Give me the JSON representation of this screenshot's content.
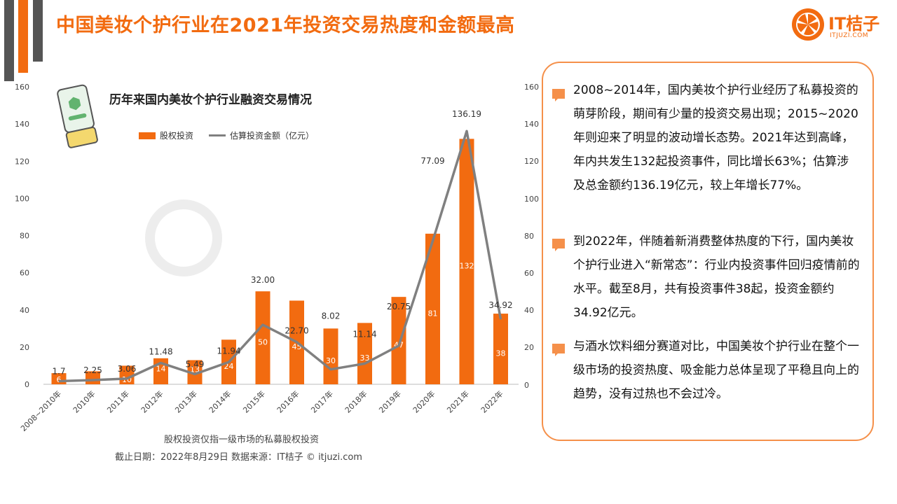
{
  "title": "中国美妆个护行业在2021年投资交易热度和金额最高",
  "logo": {
    "text": "IT桔子",
    "sub": "ITJUZI.COM"
  },
  "colors": {
    "accent": "#f26b10",
    "bar": "#f26b10",
    "line": "#808080",
    "deco_gray": "#555555"
  },
  "chart_data": {
    "type": "bar+line",
    "title": "历年来国内美妆个护行业融资交易情况",
    "categories": [
      "2008~2010年",
      "2010年",
      "2011年",
      "2012年",
      "2013年",
      "2014年",
      "2015年",
      "2016年",
      "2017年",
      "2018年",
      "2019年",
      "2020年",
      "2021年",
      "2022年"
    ],
    "series": [
      {
        "name": "股权投资",
        "type": "bar",
        "values": [
          6,
          7,
          10,
          14,
          13,
          24,
          50,
          45,
          30,
          33,
          47,
          81,
          132,
          38
        ],
        "labels": [
          "6",
          "",
          "10",
          "14",
          "13",
          "24",
          "50",
          "45",
          "30",
          "33",
          "47",
          "81",
          "132",
          "38"
        ]
      },
      {
        "name": "估算投资金额（亿元）",
        "type": "line",
        "values": [
          1.7,
          2.25,
          3.06,
          11.48,
          5.49,
          11.94,
          32.0,
          22.7,
          8.02,
          11.14,
          20.75,
          77.09,
          136.19,
          34.92
        ],
        "labels": [
          "1.7",
          "2.25",
          "3.06",
          "11.48",
          "5.49",
          "11.94",
          "32.00",
          "22.70",
          "8.02",
          "11.14",
          "20.75",
          "77.09",
          "136.19",
          "34.92"
        ]
      }
    ],
    "ylim": [
      0,
      160
    ],
    "yticks": [
      0,
      20,
      40,
      60,
      80,
      100,
      120,
      140,
      160
    ],
    "grid": false,
    "legend": "top"
  },
  "footnotes": {
    "note": "股权投资仅指一级市场的私募股权投资",
    "source": "截止日期：2022年8月29日     数据来源：IT桔子 © itjuzi.com"
  },
  "right_axis_ticks": [
    "160",
    "140",
    "120",
    "100",
    "80",
    "60",
    "40",
    "20",
    "0"
  ],
  "panel": {
    "paragraphs": [
      "2008~2014年，国内美妆个护行业经历了私募投资的萌芽阶段，期间有少量的投资交易出现；2015~2020年则迎来了明显的波动增长态势。2021年达到高峰，年内共发生132起投资事件，同比增长63%；估算涉及总金额约136.19亿元，较上年增长77%。",
      "到2022年，伴随着新消费整体热度的下行，国内美妆个护行业进入“新常态”：行业内投资事件回归疫情前的水平。截至8月，共有投资事件38起，投资金额约34.92亿元。",
      "与酒水饮料细分赛道对比，中国美妆个护行业在整个一级市场的投资热度、吸金能力总体呈现了平稳且向上的趋势，没有过热也不会过冷。"
    ]
  }
}
